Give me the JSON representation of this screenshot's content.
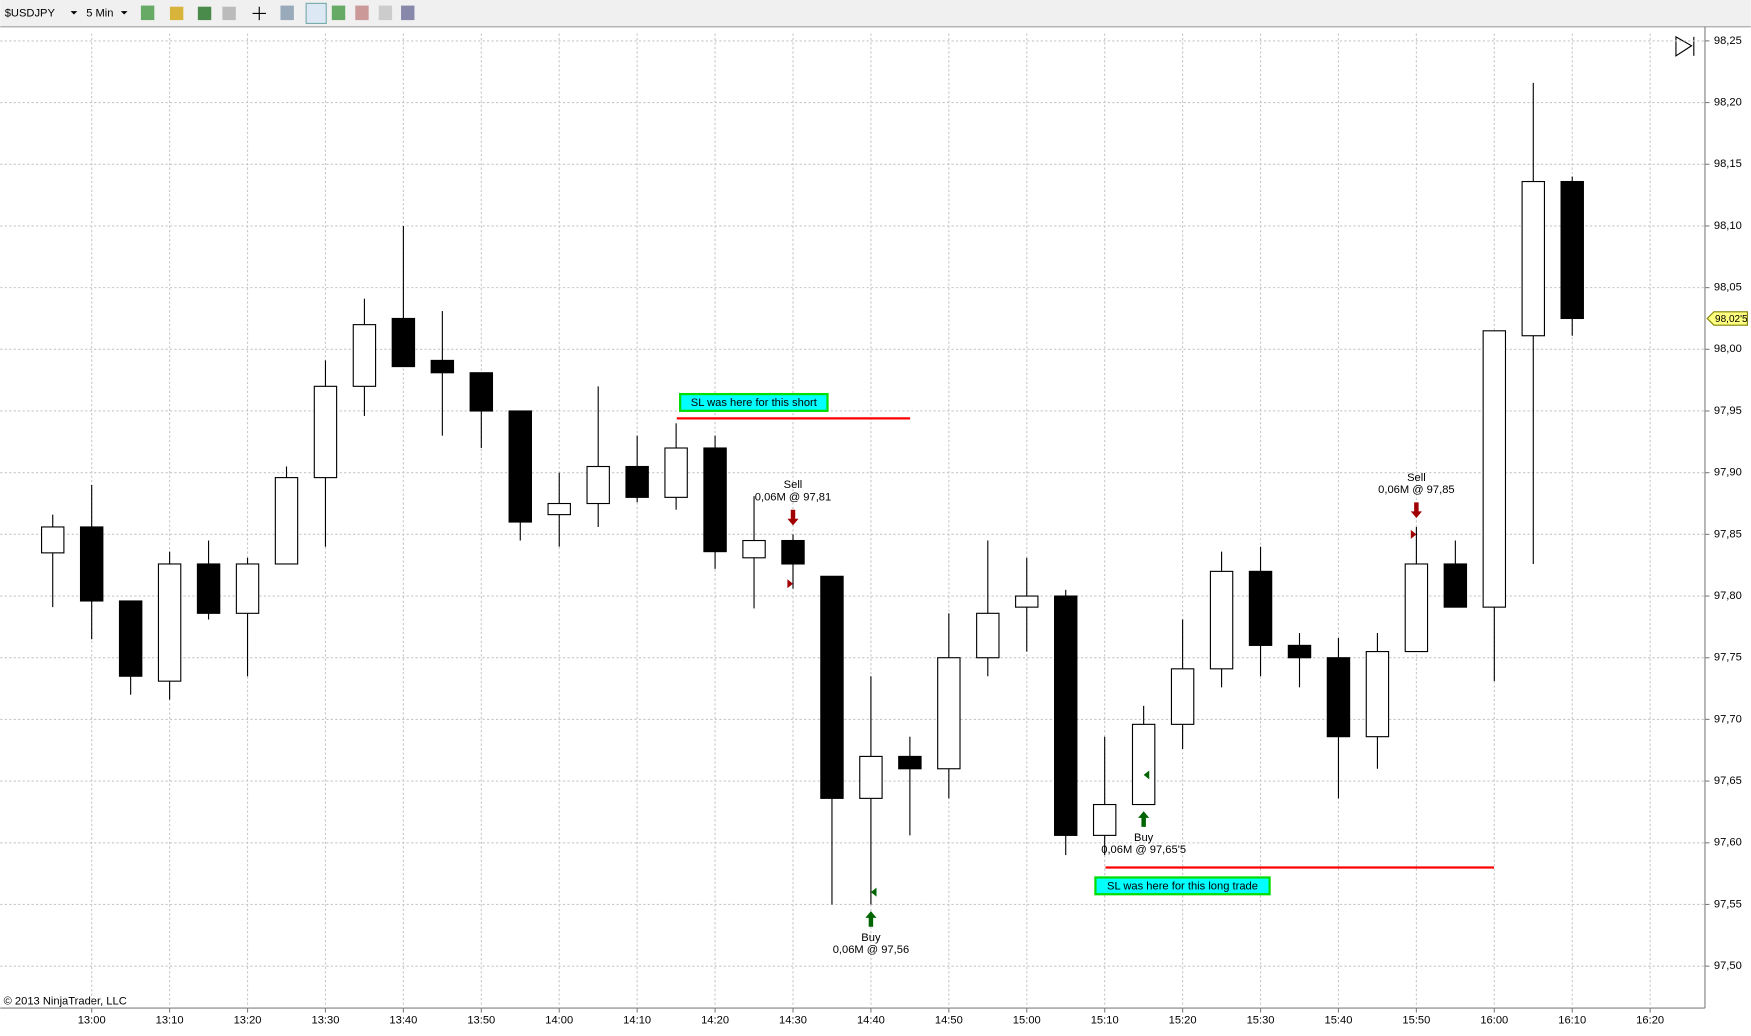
{
  "toolbar": {
    "instrument": "$USDJPY",
    "interval": "5 Min"
  },
  "copyright": "© 2013 NinjaTrader, LLC",
  "chart_data": {
    "type": "candlestick",
    "categories": [
      null,
      "13:00",
      null,
      "13:10",
      null,
      "13:20",
      null,
      "13:30",
      null,
      "13:40",
      null,
      "13:50",
      null,
      "14:00",
      null,
      "14:10",
      null,
      "14:20",
      null,
      "14:30",
      null,
      "14:40",
      null,
      "14:50",
      null,
      "15:00",
      null,
      "15:10",
      null,
      "15:20",
      null,
      "15:30",
      null,
      "15:40",
      null,
      "15:50",
      null,
      "16:00",
      null,
      "16:10",
      null,
      "16:20"
    ],
    "open": [
      97.835,
      97.856,
      97.796,
      97.731,
      97.826,
      97.786,
      97.826,
      97.896,
      97.97,
      98.025,
      97.991,
      97.981,
      97.95,
      97.866,
      97.875,
      97.905,
      97.88,
      97.92,
      97.831,
      97.845,
      97.816,
      97.636,
      97.67,
      97.66,
      97.75,
      97.791,
      97.8,
      97.606,
      97.631,
      97.696,
      97.741,
      97.82,
      97.76,
      97.75,
      97.686,
      97.755,
      97.826,
      97.791,
      98.011,
      98.136,
      null,
      null
    ],
    "high": [
      97.866,
      97.89,
      97.796,
      97.836,
      97.845,
      97.831,
      97.905,
      97.991,
      98.041,
      98.1,
      98.031,
      97.981,
      97.95,
      97.9,
      97.97,
      97.93,
      97.94,
      97.93,
      97.881,
      97.85,
      97.816,
      97.735,
      97.686,
      97.786,
      97.845,
      97.831,
      97.805,
      97.686,
      97.711,
      97.781,
      97.836,
      97.84,
      97.77,
      97.766,
      97.77,
      97.856,
      97.845,
      98.015,
      98.216,
      98.14,
      null,
      null
    ],
    "low": [
      97.791,
      97.765,
      97.72,
      97.716,
      97.781,
      97.735,
      97.826,
      97.84,
      97.946,
      97.986,
      97.93,
      97.92,
      97.845,
      97.84,
      97.856,
      97.876,
      97.87,
      97.822,
      97.79,
      97.806,
      97.55,
      97.55,
      97.606,
      97.636,
      97.735,
      97.755,
      97.59,
      97.59,
      97.631,
      97.676,
      97.726,
      97.735,
      97.726,
      97.636,
      97.66,
      97.755,
      97.791,
      97.731,
      97.826,
      98.011,
      null,
      null
    ],
    "close": [
      97.856,
      97.796,
      97.735,
      97.826,
      97.786,
      97.826,
      97.896,
      97.97,
      98.02,
      97.986,
      97.981,
      97.95,
      97.86,
      97.875,
      97.905,
      97.88,
      97.92,
      97.836,
      97.845,
      97.826,
      97.636,
      97.67,
      97.66,
      97.75,
      97.786,
      97.8,
      97.606,
      97.631,
      97.696,
      97.741,
      97.82,
      97.76,
      97.75,
      97.686,
      97.755,
      97.826,
      97.791,
      98.015,
      98.136,
      98.025,
      null,
      null
    ],
    "up_color": "#ffffff",
    "down_color": "#000000",
    "ylim": [
      97.466,
      98.256
    ],
    "yticks": [
      {
        "value": 98.25,
        "label": "98,25"
      },
      {
        "value": 98.2,
        "label": "98,20"
      },
      {
        "value": 98.15,
        "label": "98,15"
      },
      {
        "value": 98.1,
        "label": "98,10"
      },
      {
        "value": 98.05,
        "label": "98,05"
      },
      {
        "value": 98,
        "label": "98,00"
      },
      {
        "value": 97.95,
        "label": "97,95"
      },
      {
        "value": 97.9,
        "label": "97,90"
      },
      {
        "value": 97.85,
        "label": "97,85"
      },
      {
        "value": 97.8,
        "label": "97,80"
      },
      {
        "value": 97.75,
        "label": "97,75"
      },
      {
        "value": 97.7,
        "label": "97,70"
      },
      {
        "value": 97.65,
        "label": "97,65"
      },
      {
        "value": 97.6,
        "label": "97,60"
      },
      {
        "value": 97.55,
        "label": "97,55"
      },
      {
        "value": 97.5,
        "label": "97,50"
      }
    ],
    "grid": true,
    "last_price": {
      "value": 98.025,
      "label": "98,02'5"
    },
    "trades": [
      {
        "action": "Sell",
        "label": "0,06M @ 97,81",
        "price": 97.81
      },
      {
        "action": "Buy",
        "label": "0,06M @ 97,56",
        "price": 97.56
      },
      {
        "action": "Buy",
        "label": "0,06M @ 97,65'5",
        "price": 97.655
      },
      {
        "action": "Sell",
        "label": "0,06M @ 97,85",
        "price": 97.85
      }
    ],
    "stop_lines": [
      {
        "text": "SL was here for this short",
        "price": 97.944,
        "color": "#ff0000"
      },
      {
        "text": "SL was here for this long trade",
        "price": 97.58,
        "color": "#ff0000"
      }
    ]
  }
}
